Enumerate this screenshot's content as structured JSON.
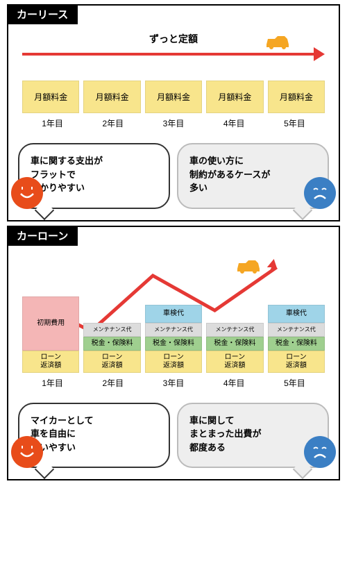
{
  "lease": {
    "title": "カーリース",
    "arrow_label": "ずっと定額",
    "arrow_color": "#e53935",
    "car_color": "#f5a623",
    "cell_label": "月額料金",
    "cell_bg": "#f8e58c",
    "years": [
      "1年目",
      "2年目",
      "3年目",
      "4年目",
      "5年目"
    ],
    "pos_text": "車に関する支出が\nフラットで\nわかりやすい",
    "neg_text": "車の使い方に\n制約があるケースが\n多い",
    "face_pos_color": "#e84c1a",
    "face_neg_color": "#3b7fc4"
  },
  "loan": {
    "title": "カーローン",
    "arrow_color": "#e53935",
    "car_color": "#f5a623",
    "blocks": {
      "initial": {
        "label": "初期費用",
        "bg": "#f4b6b6"
      },
      "shaken": {
        "label": "車検代",
        "bg": "#9fd4e8"
      },
      "maint": {
        "label": "メンテナンス代",
        "bg": "#dcdcdc"
      },
      "tax": {
        "label": "税金・保険料",
        "bg": "#9fcf8f"
      },
      "repay": {
        "label": "ローン\n返済額",
        "bg": "#f8e58c"
      }
    },
    "cols": [
      [
        "initial",
        "repay"
      ],
      [
        "maint",
        "tax",
        "repay"
      ],
      [
        "shaken",
        "maint",
        "tax",
        "repay"
      ],
      [
        "maint",
        "tax",
        "repay"
      ],
      [
        "shaken",
        "maint",
        "tax",
        "repay"
      ]
    ],
    "years": [
      "1年目",
      "2年目",
      "3年目",
      "4年目",
      "5年目"
    ],
    "pos_text": "マイカーとして\n車を自由に\n使いやすい",
    "neg_text": "車に関して\nまとまった出費が\n都度ある",
    "face_pos_color": "#e84c1a",
    "face_neg_color": "#3b7fc4"
  }
}
